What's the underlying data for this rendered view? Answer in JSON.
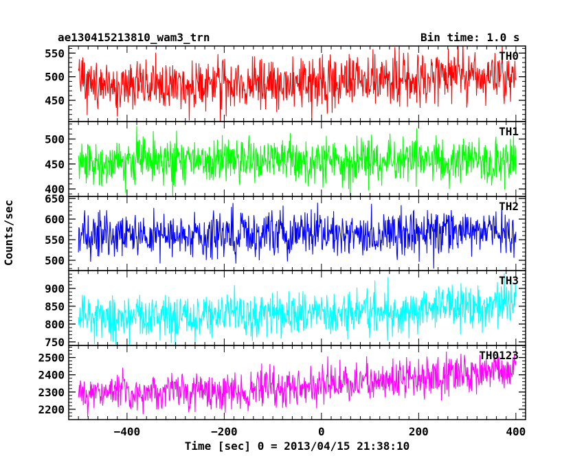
{
  "header": {
    "title": "ae130415213810_wam3_trn",
    "bin_time": "Bin time: 1.0 s"
  },
  "chart_data": {
    "type": "line",
    "title": "ae130415213810_wam3_trn",
    "subtitle": "Bin time: 1.0 s",
    "xlabel": "Time [sec] 0 = 2013/04/15 21:38:10",
    "ylabel": "Counts/sec",
    "xlim": [
      -520,
      420
    ],
    "x_ticks": [
      -400,
      -200,
      0,
      200,
      400
    ],
    "x_tick_labels": [
      "−400",
      "−200",
      "0",
      "200",
      "400"
    ],
    "x_range_data": [
      -500,
      400
    ],
    "bin_time_s": 1.0,
    "grid": false,
    "panels": [
      {
        "name": "TH0",
        "color": "#ff0000",
        "ylim": [
          405,
          565
        ],
        "y_ticks": [
          450,
          500,
          550
        ],
        "y_tick_labels": [
          "450",
          "500",
          "550"
        ],
        "mean_start": 480,
        "mean_end": 505,
        "scatter": 28
      },
      {
        "name": "TH1",
        "color": "#00ff00",
        "ylim": [
          385,
          535
        ],
        "y_ticks": [
          400,
          450,
          500
        ],
        "y_tick_labels": [
          "400",
          "450",
          "500"
        ],
        "mean_start": 455,
        "mean_end": 455,
        "scatter": 22
      },
      {
        "name": "TH2",
        "color": "#0000ff",
        "ylim": [
          475,
          655
        ],
        "y_ticks": [
          500,
          550,
          600,
          650
        ],
        "y_tick_labels": [
          "500",
          "550",
          "600",
          "650"
        ],
        "mean_start": 560,
        "mean_end": 575,
        "scatter": 26
      },
      {
        "name": "TH3",
        "color": "#00ffff",
        "ylim": [
          740,
          950
        ],
        "y_ticks": [
          750,
          800,
          850,
          900
        ],
        "y_tick_labels": [
          "750",
          "800",
          "850",
          "900"
        ],
        "mean_start": 820,
        "mean_end": 860,
        "scatter": 32
      },
      {
        "name": "TH0123",
        "color": "#ff00ff",
        "ylim": [
          2140,
          2570
        ],
        "y_ticks": [
          2200,
          2300,
          2400,
          2500
        ],
        "y_tick_labels": [
          "2200",
          "2300",
          "2400",
          "2500"
        ],
        "mean_start": 2295,
        "mean_end": 2440,
        "scatter": 55
      }
    ]
  }
}
